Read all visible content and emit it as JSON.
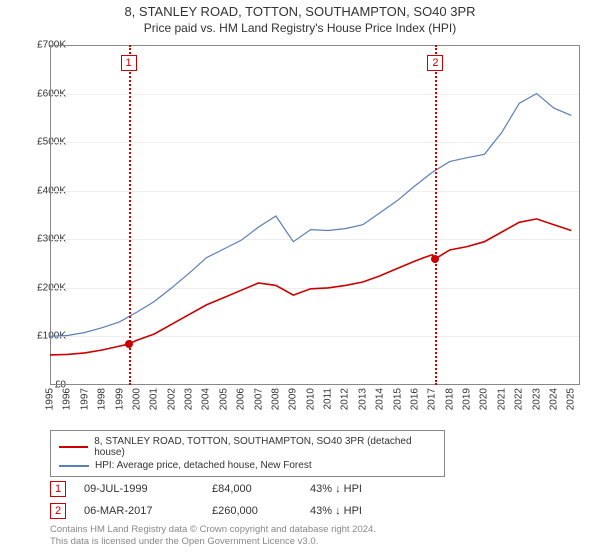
{
  "title_line1": "8, STANLEY ROAD, TOTTON, SOUTHAMPTON, SO40 3PR",
  "title_line2": "Price paid vs. HM Land Registry's House Price Index (HPI)",
  "chart": {
    "type": "line",
    "background_color": "#ffffff",
    "grid_color": "#eeeeee",
    "axis_color": "#888888",
    "font_size_axis": 10,
    "x": {
      "min": 1995,
      "max": 2025.5,
      "ticks": [
        1995,
        1996,
        1997,
        1998,
        1999,
        2000,
        2001,
        2002,
        2003,
        2004,
        2005,
        2006,
        2007,
        2008,
        2009,
        2010,
        2011,
        2012,
        2013,
        2014,
        2015,
        2016,
        2017,
        2018,
        2019,
        2020,
        2021,
        2022,
        2023,
        2024,
        2025
      ]
    },
    "y": {
      "min": 0,
      "max": 700000,
      "tick_step": 100000,
      "tick_labels": [
        "£0",
        "£100K",
        "£200K",
        "£300K",
        "£400K",
        "£500K",
        "£600K",
        "£700K"
      ]
    },
    "series": [
      {
        "name": "price_paid",
        "label": "8, STANLEY ROAD, TOTTON, SOUTHAMPTON, SO40 3PR (detached house)",
        "color": "#cc0000",
        "line_width": 1.6,
        "points": [
          [
            1995,
            62000
          ],
          [
            1996,
            63000
          ],
          [
            1997,
            66000
          ],
          [
            1998,
            72000
          ],
          [
            1999,
            80000
          ],
          [
            1999.5,
            84000
          ],
          [
            2000,
            92000
          ],
          [
            2001,
            105000
          ],
          [
            2002,
            125000
          ],
          [
            2003,
            145000
          ],
          [
            2004,
            165000
          ],
          [
            2005,
            180000
          ],
          [
            2006,
            195000
          ],
          [
            2007,
            210000
          ],
          [
            2008,
            205000
          ],
          [
            2009,
            185000
          ],
          [
            2010,
            198000
          ],
          [
            2011,
            200000
          ],
          [
            2012,
            205000
          ],
          [
            2013,
            212000
          ],
          [
            2014,
            225000
          ],
          [
            2015,
            240000
          ],
          [
            2016,
            255000
          ],
          [
            2016.5,
            262000
          ],
          [
            2017,
            268000
          ],
          [
            2017.18,
            260000
          ],
          [
            2018,
            278000
          ],
          [
            2019,
            285000
          ],
          [
            2020,
            295000
          ],
          [
            2021,
            315000
          ],
          [
            2022,
            335000
          ],
          [
            2023,
            342000
          ],
          [
            2024,
            330000
          ],
          [
            2025,
            318000
          ]
        ]
      },
      {
        "name": "hpi",
        "label": "HPI: Average price, detached house, New Forest",
        "color": "#5b7fb8",
        "line_width": 1.2,
        "points": [
          [
            1995,
            100000
          ],
          [
            1996,
            102000
          ],
          [
            1997,
            108000
          ],
          [
            1998,
            118000
          ],
          [
            1999,
            130000
          ],
          [
            2000,
            150000
          ],
          [
            2001,
            172000
          ],
          [
            2002,
            200000
          ],
          [
            2003,
            230000
          ],
          [
            2004,
            262000
          ],
          [
            2005,
            280000
          ],
          [
            2006,
            298000
          ],
          [
            2007,
            325000
          ],
          [
            2008,
            348000
          ],
          [
            2009,
            295000
          ],
          [
            2010,
            320000
          ],
          [
            2011,
            318000
          ],
          [
            2012,
            322000
          ],
          [
            2013,
            330000
          ],
          [
            2014,
            355000
          ],
          [
            2015,
            380000
          ],
          [
            2016,
            410000
          ],
          [
            2017,
            438000
          ],
          [
            2018,
            460000
          ],
          [
            2019,
            468000
          ],
          [
            2020,
            475000
          ],
          [
            2021,
            520000
          ],
          [
            2022,
            580000
          ],
          [
            2023,
            600000
          ],
          [
            2024,
            570000
          ],
          [
            2025,
            555000
          ]
        ]
      }
    ],
    "markers": [
      {
        "id": "1",
        "x": 1999.52,
        "y": 84000
      },
      {
        "id": "2",
        "x": 2017.18,
        "y": 260000
      }
    ]
  },
  "legend": {
    "items": [
      {
        "color": "#cc0000",
        "label": "8, STANLEY ROAD, TOTTON, SOUTHAMPTON, SO40 3PR (detached house)"
      },
      {
        "color": "#5b7fb8",
        "label": "HPI: Average price, detached house, New Forest"
      }
    ]
  },
  "transactions": [
    {
      "id": "1",
      "date": "09-JUL-1999",
      "price": "£84,000",
      "pct": "43% ↓ HPI"
    },
    {
      "id": "2",
      "date": "06-MAR-2017",
      "price": "£260,000",
      "pct": "43% ↓ HPI"
    }
  ],
  "footer_line1": "Contains HM Land Registry data © Crown copyright and database right 2024.",
  "footer_line2": "This data is licensed under the Open Government Licence v3.0."
}
